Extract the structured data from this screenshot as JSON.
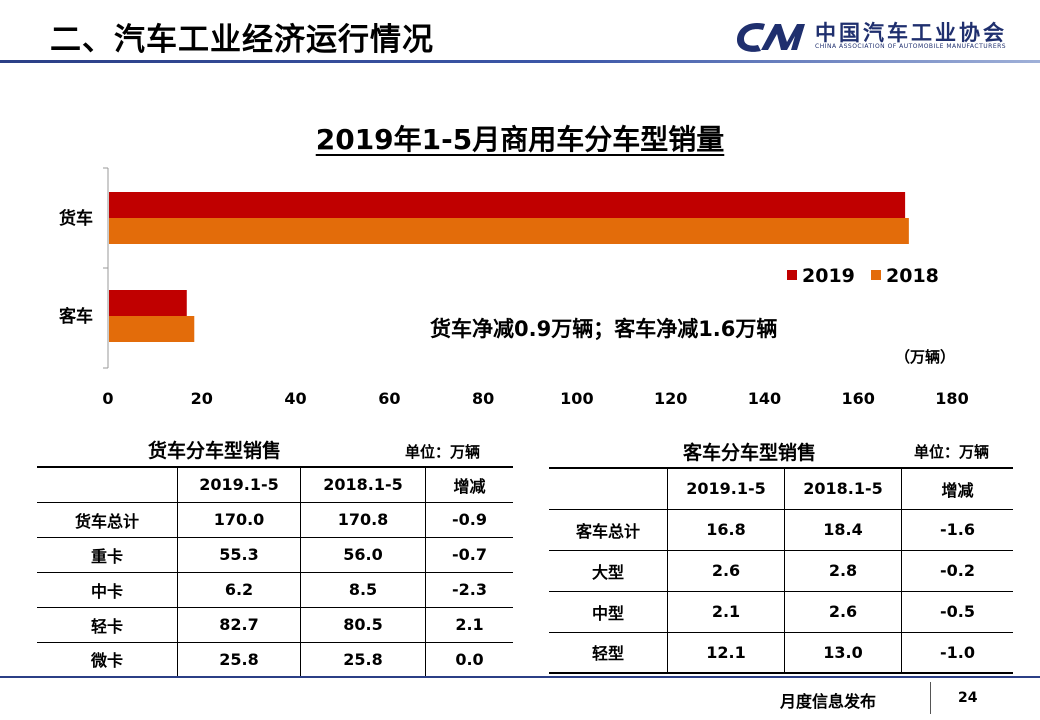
{
  "header": {
    "title": "二、汽车工业经济运行情况",
    "logo_cn": "中国汽车工业协会",
    "logo_en": "CHINA ASSOCIATION OF AUTOMOBILE MANUFACTURERS"
  },
  "chart_data": {
    "type": "bar",
    "orientation": "horizontal",
    "title": "2019年1-5月商用车分车型销量",
    "categories": [
      "货车",
      "客车"
    ],
    "series": [
      {
        "name": "2019",
        "values": [
          170.0,
          16.8
        ],
        "color": "#c00000"
      },
      {
        "name": "2018",
        "values": [
          170.8,
          18.4
        ],
        "color": "#e36c0a"
      }
    ],
    "xlim": [
      0,
      180
    ],
    "xticks": [
      "0",
      "20",
      "40",
      "60",
      "80",
      "100",
      "120",
      "140",
      "160",
      "180"
    ],
    "unit": "（万辆）",
    "annotation": "货车净减0.9万辆；客车净减1.6万辆",
    "legend_position": "right",
    "grid": false
  },
  "truck_table": {
    "caption": "货车分车型销售",
    "unit": "单位：万辆",
    "headers": [
      "",
      "2019.1-5",
      "2018.1-5",
      "增减"
    ],
    "rows": [
      [
        "货车总计",
        "170.0",
        "170.8",
        "-0.9"
      ],
      [
        "重卡",
        "55.3",
        "56.0",
        "-0.7"
      ],
      [
        "中卡",
        "6.2",
        "8.5",
        "-2.3"
      ],
      [
        "轻卡",
        "82.7",
        "80.5",
        "2.1"
      ],
      [
        "微卡",
        "25.8",
        "25.8",
        "0.0"
      ]
    ]
  },
  "bus_table": {
    "caption": "客车分车型销售",
    "unit": "单位：万辆",
    "headers": [
      "",
      "2019.1-5",
      "2018.1-5",
      "增减"
    ],
    "rows": [
      [
        "客车总计",
        "16.8",
        "18.4",
        "-1.6"
      ],
      [
        "大型",
        "2.6",
        "2.8",
        "-0.2"
      ],
      [
        "中型",
        "2.1",
        "2.6",
        "-0.5"
      ],
      [
        "轻型",
        "12.1",
        "13.0",
        "-1.0"
      ]
    ]
  },
  "footer": {
    "label": "月度信息发布",
    "page": "24"
  }
}
